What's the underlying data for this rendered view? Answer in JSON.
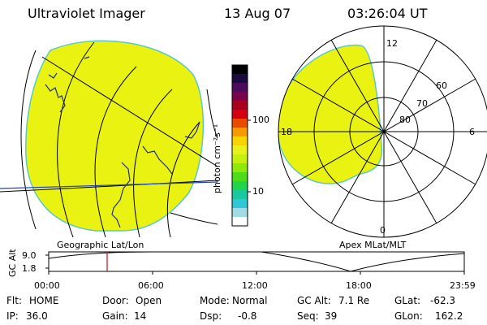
{
  "header": {
    "title": "Ultraviolet Imager",
    "date": "13 Aug 07",
    "time": "03:26:04 UT"
  },
  "left_panel": {
    "caption": "Geographic Lat/Lon",
    "fill_color": "#eaf212",
    "border_color": "#5ac8c8"
  },
  "right_panel": {
    "caption": "Apex MLat/MLT",
    "mlt_labels": {
      "top": "12",
      "right": "6",
      "bottom": "0",
      "left": "18"
    },
    "mlat_labels": [
      "60",
      "70",
      "80"
    ]
  },
  "colorbar": {
    "unit_label": "photon cm⁻²s⁻¹",
    "ticks": [
      "100",
      "10"
    ],
    "colors": [
      "#000000",
      "#1a0a40",
      "#4b0c5c",
      "#7a0050",
      "#a8001e",
      "#d40012",
      "#ea4a00",
      "#f59a00",
      "#f6d400",
      "#e8f21a",
      "#c3f00f",
      "#8ee80a",
      "#4cdc18",
      "#22d44a",
      "#18c8a0",
      "#30c8d8",
      "#9fdce8",
      "#ffffff"
    ]
  },
  "altitude_plot": {
    "axis_title": "GC Alt",
    "y_ticks": [
      "9.0",
      "1.8"
    ],
    "x_ticks": [
      "00:00",
      "06:00",
      "12:00",
      "18:00",
      "23:59"
    ],
    "marker_color": "#d02020"
  },
  "info_row1": [
    {
      "label": "Flt:",
      "value": "HOME"
    },
    {
      "label": "Door:",
      "value": "Open"
    },
    {
      "label": "Mode:",
      "value": "Normal"
    },
    {
      "label": "GC Alt:",
      "value": "7.1 Re"
    },
    {
      "label": "GLat:",
      "value": "-62.3"
    }
  ],
  "info_row2": [
    {
      "label": "IP:",
      "value": "36.0"
    },
    {
      "label": "Gain:",
      "value": "14"
    },
    {
      "label": "Dsp:",
      "value": "-0.8"
    },
    {
      "label": "Seq:",
      "value": "39"
    },
    {
      "label": "GLon:",
      "value": "162.2"
    }
  ]
}
